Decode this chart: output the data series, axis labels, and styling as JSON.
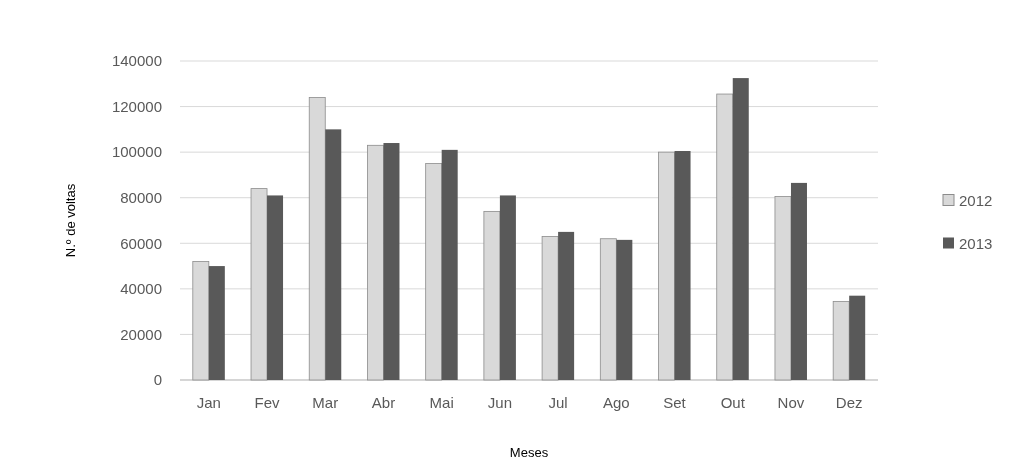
{
  "chart_data": {
    "type": "bar",
    "xlabel": "Meses",
    "ylabel": "N.º de voltas",
    "categories": [
      "Jan",
      "Fev",
      "Mar",
      "Abr",
      "Mai",
      "Jun",
      "Jul",
      "Ago",
      "Set",
      "Out",
      "Nov",
      "Dez"
    ],
    "series": [
      {
        "name": "2012",
        "color": "#d9d9d9",
        "values": [
          52000,
          84000,
          124000,
          103000,
          95000,
          74000,
          63000,
          62000,
          100000,
          125500,
          80500,
          34500
        ]
      },
      {
        "name": "2013",
        "color": "#595959",
        "values": [
          50000,
          81000,
          110000,
          104000,
          101000,
          81000,
          65000,
          61500,
          100500,
          132500,
          86500,
          37000
        ]
      }
    ],
    "ylim": [
      0,
      140000
    ],
    "yticks": [
      0,
      20000,
      40000,
      60000,
      80000,
      100000,
      120000,
      140000
    ],
    "grid": "y",
    "legend": "right"
  }
}
